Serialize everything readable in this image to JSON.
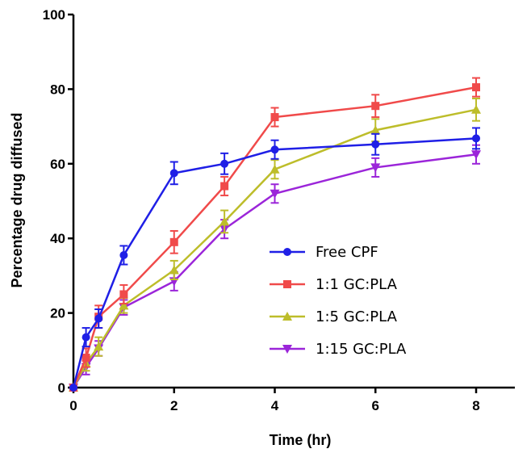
{
  "chart_data": {
    "type": "line",
    "xlabel": "Time (hr)",
    "ylabel": "Percentage drug diffused",
    "xlim": [
      0,
      8.8
    ],
    "ylim": [
      0,
      100
    ],
    "xticks": [
      0,
      2,
      4,
      6,
      8
    ],
    "yticks": [
      0,
      20,
      40,
      60,
      80,
      100
    ],
    "grid": false,
    "legend_position": "center-right",
    "x": [
      0,
      0.25,
      0.5,
      1,
      2,
      3,
      4,
      6,
      8
    ],
    "series": [
      {
        "name": "Free CPF",
        "color": "#1f1fe6",
        "marker": "circle",
        "values": [
          0,
          13.5,
          18.5,
          35.5,
          57.5,
          60,
          63.8,
          65.2,
          66.8
        ],
        "errors": [
          0,
          2.5,
          2.5,
          2.5,
          3,
          2.8,
          2.5,
          2.8,
          2.8
        ]
      },
      {
        "name": "1:1 GC:PLA",
        "color": "#f04a4a",
        "marker": "square",
        "values": [
          0,
          8,
          19,
          25,
          39,
          54,
          72.5,
          75.5,
          80.5
        ],
        "errors": [
          0,
          2.5,
          3,
          2.5,
          3,
          2.5,
          2.5,
          3,
          2.5
        ]
      },
      {
        "name": "1:5 GC:PLA",
        "color": "#bdbd2a",
        "marker": "triangle-up",
        "values": [
          0,
          6.5,
          11,
          22,
          31.5,
          44.5,
          58.5,
          69,
          74.5
        ],
        "errors": [
          0,
          2,
          2.5,
          2,
          2.5,
          3,
          2.5,
          3,
          3
        ]
      },
      {
        "name": "1:15 GC:PLA",
        "color": "#9b25d9",
        "marker": "triangle-down",
        "values": [
          0,
          5.5,
          10.5,
          21.5,
          28.5,
          42.5,
          52,
          59,
          62.5
        ],
        "errors": [
          0,
          2,
          2,
          2,
          2.5,
          2.5,
          2.5,
          2.5,
          2.5
        ]
      }
    ]
  }
}
